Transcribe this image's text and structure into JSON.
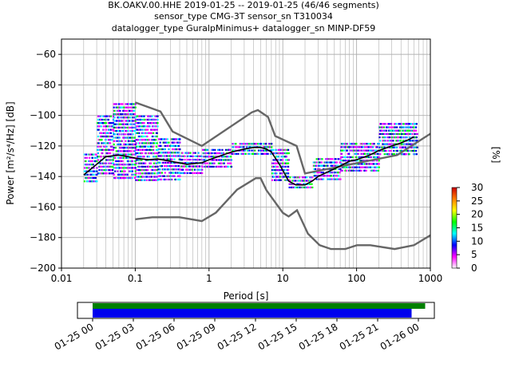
{
  "title_lines": [
    "BK.OAKV.00.HHE   2019-01-25 -- 2019-01-25  (46/46 segments)",
    "sensor_type CMG-3T sensor_sn T310034",
    "datalogger_type GuralpMinimus+ datalogger_sn MINP-DF59"
  ],
  "colorbar": {
    "label": "[%]",
    "ticks": [
      "0",
      "5",
      "10",
      "15",
      "20",
      "25",
      "30"
    ],
    "range": [
      0,
      30
    ],
    "stops": [
      "#ffffff",
      "#ff00ff",
      "#0000ff",
      "#00ffff",
      "#00ff00",
      "#ffff00",
      "#ff8000",
      "#cc0000"
    ]
  },
  "colors": {
    "model_curve": "#666666",
    "mean_curve": "#000000",
    "grid": "#b0b0b0",
    "timeline_data": "#0000ee",
    "timeline_gaps": "#008000"
  },
  "chart_data": {
    "type": "line",
    "xlabel": "Period [s]",
    "ylabel": "Power [m²/s⁴/Hz] [dB]",
    "xscale": "log",
    "xlim": [
      0.01,
      1000
    ],
    "ylim": [
      -200,
      -50
    ],
    "xticks": [
      {
        "v": 0.01,
        "label": "0.01"
      },
      {
        "v": 0.1,
        "label": "0.1"
      },
      {
        "v": 1,
        "label": "1"
      },
      {
        "v": 10,
        "label": "10"
      },
      {
        "v": 100,
        "label": "100"
      },
      {
        "v": 1000,
        "label": "1000"
      }
    ],
    "yticks": [
      {
        "v": -60,
        "label": "−60"
      },
      {
        "v": -80,
        "label": "−80"
      },
      {
        "v": -100,
        "label": "−100"
      },
      {
        "v": -120,
        "label": "−120"
      },
      {
        "v": -140,
        "label": "−140"
      },
      {
        "v": -160,
        "label": "−160"
      },
      {
        "v": -180,
        "label": "−180"
      },
      {
        "v": -200,
        "label": "−200"
      }
    ],
    "grid": true,
    "series": [
      {
        "role": "high_noise_model",
        "x": [
          0.1,
          0.22,
          0.32,
          0.8,
          3.8,
          4.6,
          6.3,
          7.9,
          15.4,
          20,
          354.8,
          1000
        ],
        "y": [
          -91.5,
          -97.4,
          -110.5,
          -120,
          -98,
          -96.5,
          -101,
          -113.5,
          -120,
          -138,
          -126,
          -112
        ]
      },
      {
        "role": "low_noise_model",
        "x": [
          0.1,
          0.17,
          0.4,
          0.8,
          1.24,
          2.4,
          4.3,
          5,
          6,
          10,
          12,
          15.6,
          21.9,
          31.6,
          45,
          70,
          101,
          154,
          328,
          600,
          1000
        ],
        "y": [
          -168,
          -166.7,
          -166.7,
          -169.2,
          -163.7,
          -148.6,
          -141.1,
          -141.1,
          -149,
          -163.8,
          -166.2,
          -162.1,
          -177.5,
          -185,
          -187.5,
          -187.5,
          -185,
          -185,
          -187.5,
          -185,
          -178.5
        ]
      },
      {
        "role": "mean",
        "x": [
          0.02,
          0.03,
          0.04,
          0.06,
          0.08,
          0.1,
          0.15,
          0.2,
          0.3,
          0.5,
          0.8,
          1,
          2,
          3,
          4,
          5,
          6,
          7,
          9,
          12,
          15,
          20,
          25,
          30,
          50,
          80,
          100,
          150,
          200,
          300,
          400,
          500,
          600
        ],
        "y": [
          -139,
          -132,
          -127,
          -126,
          -127,
          -128,
          -129,
          -128.5,
          -130,
          -132,
          -131,
          -129,
          -124,
          -122,
          -121,
          -121,
          -122,
          -124,
          -132,
          -143,
          -145.5,
          -145.5,
          -143,
          -140,
          -135,
          -130,
          -129,
          -126,
          -123,
          -120,
          -118,
          -116,
          -114
        ]
      }
    ],
    "density": [
      {
        "x0": 0.02,
        "x1": 0.03,
        "ymin": -145,
        "ymax": -125
      },
      {
        "x0": 0.03,
        "x1": 0.05,
        "ymin": -140,
        "ymax": -100
      },
      {
        "x0": 0.05,
        "x1": 0.1,
        "ymin": -142,
        "ymax": -92
      },
      {
        "x0": 0.1,
        "x1": 0.2,
        "ymin": -143,
        "ymax": -100
      },
      {
        "x0": 0.2,
        "x1": 0.4,
        "ymin": -143,
        "ymax": -115
      },
      {
        "x0": 0.4,
        "x1": 0.8,
        "ymin": -140,
        "ymax": -124
      },
      {
        "x0": 0.8,
        "x1": 2,
        "ymin": -136,
        "ymax": -122
      },
      {
        "x0": 2,
        "x1": 7,
        "ymin": -126,
        "ymax": -118
      },
      {
        "x0": 7,
        "x1": 12,
        "ymin": -145,
        "ymax": -122
      },
      {
        "x0": 12,
        "x1": 25,
        "ymin": -148,
        "ymax": -140
      },
      {
        "x0": 25,
        "x1": 60,
        "ymin": -144,
        "ymax": -128
      },
      {
        "x0": 60,
        "x1": 200,
        "ymin": -138,
        "ymax": -118
      },
      {
        "x0": 200,
        "x1": 660,
        "ymin": -128,
        "ymax": -105
      }
    ],
    "timeline": {
      "ticks": [
        "01-25 00",
        "01-25 03",
        "01-25 06",
        "01-25 09",
        "01-25 12",
        "01-25 15",
        "01-25 18",
        "01-25 21",
        "01-26 00"
      ],
      "data_span_hours": [
        0,
        23.5
      ],
      "gap_span_hours": [
        0,
        24.5
      ]
    }
  }
}
